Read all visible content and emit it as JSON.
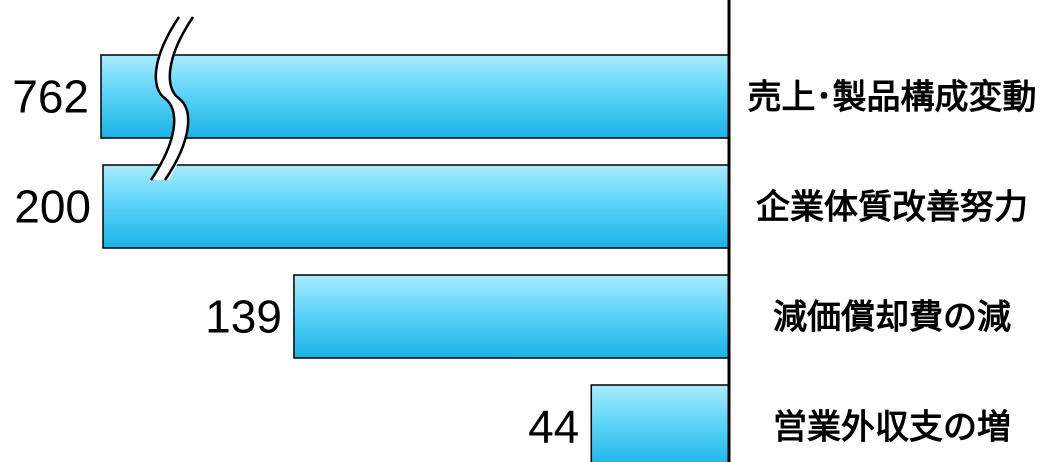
{
  "chart_data": {
    "type": "bar",
    "orientation": "horizontal",
    "direction": "leftward",
    "categories": [
      "売上･製品構成変動",
      "企業体質改善努力",
      "減価償却費の減",
      "営業外収支の増"
    ],
    "values": [
      762,
      200,
      139,
      44
    ],
    "data_labels": [
      "762",
      "200",
      "139",
      "44"
    ],
    "axis_break": {
      "category": "売上･製品構成変動"
    },
    "colors": {
      "bar_light": "#a8ecff",
      "bar_mid": "#5ed4f8",
      "bar_dark": "#1ab3e6",
      "bar_border": "#000000",
      "axis": "#000000"
    },
    "title": "",
    "xlabel": "",
    "ylabel": ""
  }
}
